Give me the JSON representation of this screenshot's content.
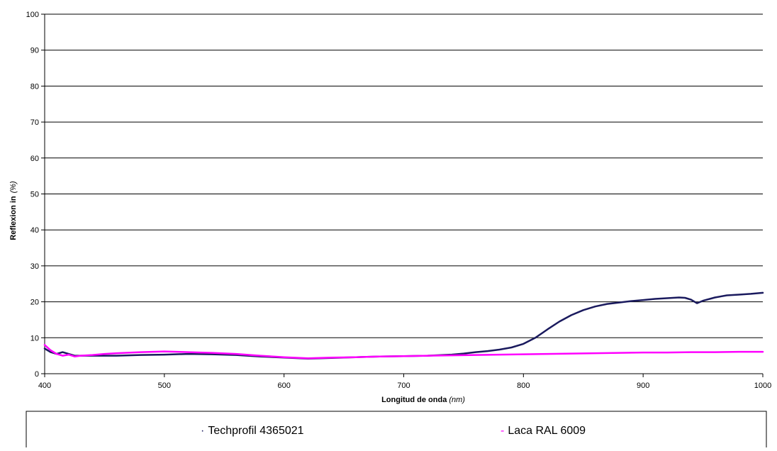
{
  "chart_data": {
    "type": "line",
    "title": "",
    "xlabel": "Longitud de onda",
    "xlabel_unit": "(nm)",
    "ylabel": "Reflexion in",
    "ylabel_unit": "(%)",
    "xlim": [
      400,
      1000
    ],
    "ylim": [
      0,
      100
    ],
    "x_ticks": [
      400,
      500,
      600,
      700,
      800,
      900,
      1000
    ],
    "y_ticks": [
      0,
      10,
      20,
      30,
      40,
      50,
      60,
      70,
      80,
      90,
      100
    ],
    "grid": "horizontal",
    "legend_position": "bottom",
    "series": [
      {
        "name": "Techprofil 4365021",
        "legend_marker": "·",
        "color": "#1a1a5e",
        "x": [
          400,
          405,
          410,
          415,
          420,
          425,
          430,
          440,
          450,
          460,
          480,
          500,
          520,
          540,
          560,
          580,
          600,
          620,
          640,
          660,
          680,
          700,
          720,
          740,
          750,
          760,
          770,
          780,
          790,
          800,
          810,
          820,
          830,
          840,
          850,
          860,
          870,
          880,
          890,
          900,
          910,
          920,
          930,
          935,
          940,
          945,
          950,
          960,
          970,
          980,
          990,
          1000
        ],
        "y": [
          7,
          6,
          5.5,
          6,
          5.5,
          5,
          5,
          5,
          5,
          5,
          5.2,
          5.3,
          5.5,
          5.4,
          5.2,
          4.8,
          4.5,
          4.2,
          4.4,
          4.6,
          4.8,
          4.9,
          5,
          5.3,
          5.6,
          6,
          6.3,
          6.7,
          7.3,
          8.3,
          10,
          12.3,
          14.5,
          16.3,
          17.7,
          18.7,
          19.4,
          19.8,
          20.2,
          20.5,
          20.8,
          21,
          21.2,
          21.1,
          20.6,
          19.6,
          20.3,
          21.2,
          21.8,
          22,
          22.2,
          22.5
        ]
      },
      {
        "name": "Laca RAL 6009",
        "legend_marker": "-",
        "color": "#ff00ff",
        "x": [
          400,
          405,
          410,
          415,
          420,
          425,
          430,
          440,
          450,
          460,
          480,
          500,
          520,
          540,
          560,
          580,
          600,
          620,
          640,
          660,
          680,
          700,
          720,
          740,
          760,
          780,
          800,
          820,
          840,
          860,
          880,
          900,
          920,
          940,
          960,
          980,
          1000
        ],
        "y": [
          8,
          6.5,
          5.5,
          5,
          5.3,
          4.8,
          5,
          5.2,
          5.5,
          5.7,
          6,
          6.2,
          6,
          5.8,
          5.5,
          5,
          4.6,
          4.3,
          4.5,
          4.6,
          4.8,
          4.9,
          5,
          5.1,
          5.2,
          5.3,
          5.4,
          5.5,
          5.6,
          5.7,
          5.8,
          5.9,
          5.9,
          6,
          6,
          6.1,
          6.1
        ]
      }
    ]
  }
}
